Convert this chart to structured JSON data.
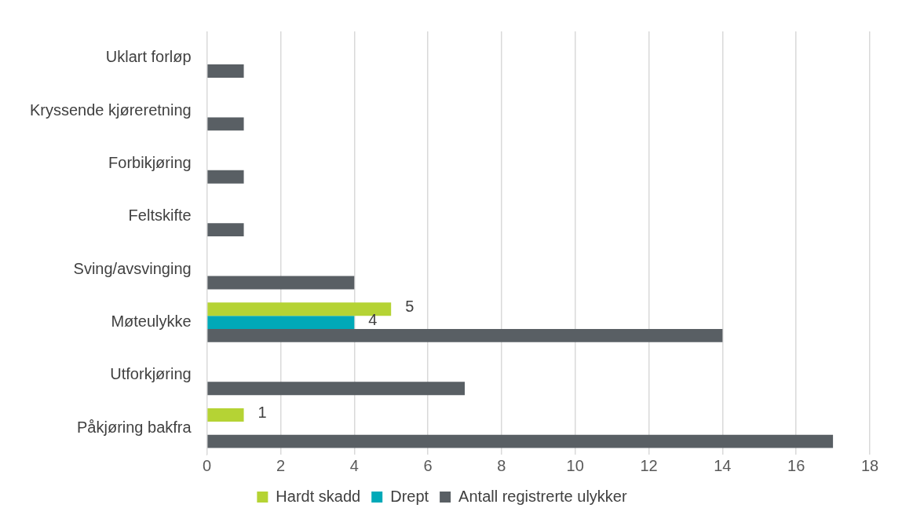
{
  "chart_data": {
    "type": "bar",
    "orientation": "horizontal",
    "categories": [
      "Uklart forløp",
      "Kryssende kjøreretning",
      "Forbikjøring",
      "Feltskifte",
      "Sving/avsvinging",
      "Møteulykke",
      "Utforkjøring",
      "Påkjøring bakfra"
    ],
    "series": [
      {
        "name": "Hardt skadd",
        "color": "#b5d334",
        "values": [
          null,
          null,
          null,
          null,
          null,
          5,
          null,
          1
        ],
        "value_labels": [
          null,
          null,
          null,
          null,
          null,
          "5",
          null,
          "1"
        ]
      },
      {
        "name": "Drept",
        "color": "#00a9b8",
        "values": [
          null,
          null,
          null,
          null,
          null,
          4,
          null,
          null
        ],
        "value_labels": [
          null,
          null,
          null,
          null,
          null,
          "4",
          null,
          null
        ]
      },
      {
        "name": "Antall registrerte ulykker",
        "color": "#595f64",
        "values": [
          1,
          1,
          1,
          1,
          4,
          14,
          7,
          17
        ]
      }
    ],
    "xlim": [
      0,
      18
    ],
    "xticks": [
      0,
      2,
      4,
      6,
      8,
      10,
      12,
      14,
      16,
      18
    ],
    "grid": "x",
    "legend": "bottom"
  }
}
